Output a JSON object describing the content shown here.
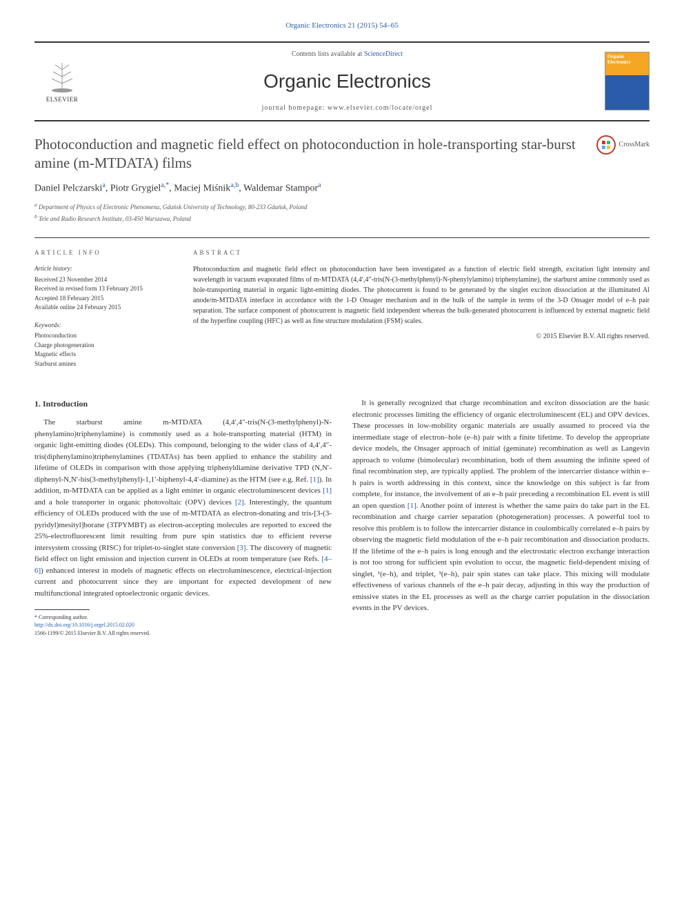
{
  "header": {
    "citation_link": "Organic Electronics 21 (2015) 54–65",
    "contents_prefix": "Contents lists available at ",
    "contents_link": "ScienceDirect",
    "journal_title": "Organic Electronics",
    "homepage_prefix": "journal homepage: ",
    "homepage_url": "www.elsevier.com/locate/orgel",
    "publisher": "ELSEVIER",
    "cover_text1": "Organic",
    "cover_text2": "Electronics"
  },
  "crossmark": {
    "label": "CrossMark"
  },
  "article": {
    "title": "Photoconduction and magnetic field effect on photoconduction in hole-transporting star-burst amine (m-MTDATA) films",
    "authors_html": "Daniel Pelczarski<sup class='author-sup'>a</sup>, Piotr Grygiel<sup class='author-sup'>a,*</sup>, Maciej Miśnik<sup class='author-sup'>a,b</sup>, Waldemar Stampor<sup class='author-sup'>a</sup>",
    "affiliations": [
      "a Department of Physics of Electronic Phenomena, Gdańsk University of Technology, 80-233 Gdańsk, Poland",
      "b Tele and Radio Research Institute, 03-450 Warszawa, Poland"
    ]
  },
  "info": {
    "label": "ARTICLE INFO",
    "history_label": "Article history:",
    "history": [
      "Received 23 November 2014",
      "Received in revised form 13 February 2015",
      "Accepted 18 February 2015",
      "Available online 24 February 2015"
    ],
    "keywords_label": "Keywords:",
    "keywords": [
      "Photoconduction",
      "Charge photogeneration",
      "Magnetic effects",
      "Starburst amines"
    ]
  },
  "abstract": {
    "label": "ABSTRACT",
    "text": "Photoconduction and magnetic field effect on photoconduction have been investigated as a function of electric field strength, excitation light intensity and wavelength in vacuum evaporated films of m-MTDATA (4,4′,4″-tris(N-(3-methylphenyl)-N-phenylylamino) triphenylamine), the starburst amine commonly used as hole-transporting material in organic light-emitting diodes. The photocurrent is found to be generated by the singlet exciton dissociation at the illuminated Al anode/m-MTDATA interface in accordance with the 1-D Onsager mechanism and in the bulk of the sample in terms of the 3-D Onsager model of e–h pair separation. The surface component of photocurrent is magnetic field independent whereas the bulk-generated photocurrent is influenced by external magnetic field of the hyperfine coupling (HFC) as well as fine structure modulation (FSM) scales.",
    "copyright": "© 2015 Elsevier B.V. All rights reserved."
  },
  "body": {
    "section_heading": "1. Introduction",
    "col1_p1": "The starburst amine m-MTDATA (4,4′,4″-tris(N-(3-methylphenyl)-N-phenylamino)triphenylamine) is commonly used as a hole-transporting material (HTM) in organic light-emitting diodes (OLEDs). This compound, belonging to the wider class of 4,4′,4″-tris(diphenylamino)triphenylamines (TDATAs) has been applied to enhance the stability and lifetime of OLEDs in comparison with those applying triphenyldiamine derivative TPD (N,N′-diphenyl-N,N′-bis(3-methylphenyl)-1,1′-biphenyl-4,4′-diamine) as the HTM (see e.g. Ref. <span class='ref-link'>[1]</span>). In addition, m-MTDATA can be applied as a light emitter in organic electroluminescent devices <span class='ref-link'>[1]</span> and a hole transporter in organic photovoltaic (OPV) devices <span class='ref-link'>[2]</span>. Interestingly, the quantum efficiency of OLEDs produced with the use of m-MTDATA as electron-donating and tris-[3-(3-pyridyl)mesityl]borane (3TPYMBT) as electron-accepting molecules are reported to exceed the 25%-electrofluorescent limit resulting from pure spin statistics due to efficient reverse intersystem crossing (RISC) for triplet-to-singlet state conversion <span class='ref-link'>[3]</span>. The discovery of magnetic field effect on light emission and injection current in OLEDs at room temperature (see Refs. <span class='ref-link'>[4–6]</span>) enhanced interest in models of magnetic effects on electroluminescence, electrical-injection current and photocurrent since they are important for expected development of new multifunctional integrated optoelectronic organic devices.",
    "col2_p1": "It is generally recognized that charge recombination and exciton dissociation are the basic electronic processes limiting the efficiency of organic electroluminescent (EL) and OPV devices. These processes in low-mobility organic materials are usually assumed to proceed via the intermediate stage of electron–hole (e–h) pair with a finite lifetime. To develop the appropriate device models, the Onsager approach of initial (geminate) recombination as well as Langevin approach to volume (bimolecular) recombination, both of them assuming the infinite speed of final recombination step, are typically applied. The problem of the intercarrier distance within e–h pairs is worth addressing in this context, since the knowledge on this subject is far from complete, for instance, the involvement of an e–h pair preceding a recombination EL event is still an open question <span class='ref-link'>[1]</span>. Another point of interest is whether the same pairs do take part in the EL recombination and charge carrier separation (photogeneration) processes. A powerful tool to resolve this problem is to follow the intercarrier distance in coulombically correlated e–h pairs by observing the magnetic field modulation of the e–h pair recombination and dissociation products. If the lifetime of the e–h pairs is long enough and the electrostatic electron exchange interaction is not too strong for sufficient spin evolution to occur, the magnetic field-dependent mixing of singlet, ¹(e–h), and triplet, ³(e–h), pair spin states can take place. This mixing will modulate effectiveness of various channels of the e–h pair decay, adjusting in this way the production of emissive states in the EL processes as well as the charge carrier population in the dissociation events in the PV devices."
  },
  "footnote": {
    "corresponding": "* Corresponding author.",
    "doi": "http://dx.doi.org/10.1016/j.orgel.2015.02.020",
    "issn_copyright": "1566-1199/© 2015 Elsevier B.V. All rights reserved."
  },
  "colors": {
    "link": "#2a5caa",
    "text": "#333333",
    "cover_orange": "#f5a623",
    "cover_blue": "#2a5caa",
    "crossmark_ring": "#c0392b"
  }
}
